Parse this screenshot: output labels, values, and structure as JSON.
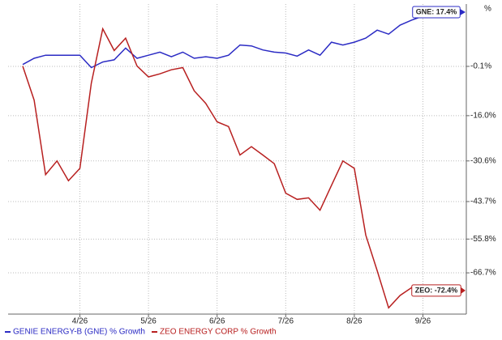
{
  "chart_data": {
    "type": "line",
    "categories": [
      null,
      null,
      null,
      null,
      null,
      "4/26",
      null,
      null,
      null,
      null,
      null,
      "5/26",
      null,
      null,
      null,
      null,
      null,
      "6/26",
      null,
      null,
      null,
      null,
      null,
      "7/26",
      null,
      null,
      null,
      null,
      null,
      "8/26",
      null,
      null,
      null,
      null,
      null,
      "9/26",
      null
    ],
    "series": [
      {
        "name": "GENIE ENERGY-B (GNE) % Growth",
        "color": "#2b2bc4",
        "end_label": "GNE: 17.4%",
        "values": [
          0.5,
          2.5,
          3.5,
          3.5,
          3.5,
          3.5,
          -0.5,
          1.3,
          2,
          5.8,
          2.5,
          3.5,
          4.5,
          3,
          4.5,
          2.5,
          3,
          2.5,
          3.5,
          6.8,
          6.5,
          5.2,
          4.5,
          4.2,
          3.2,
          5.2,
          3.5,
          7.7,
          6.8,
          7.7,
          9,
          11.6,
          10.3,
          13.2,
          14.8,
          16.1,
          17.4
        ]
      },
      {
        "name": "ZEO ENERGY CORP % Growth",
        "color": "#b82020",
        "end_label": "ZEO: -72.4%",
        "values": [
          0,
          -11,
          -35,
          -30.6,
          -37,
          -33,
          -5.5,
          12,
          5,
          9,
          0,
          -3.5,
          -2.5,
          -1.2,
          -0.5,
          -8,
          -12,
          -18,
          -19.5,
          -28.7,
          -26,
          -28.7,
          -31.5,
          -41,
          -43,
          -42.5,
          -46.5,
          -38.5,
          -30.6,
          -33,
          -54.5,
          -66,
          -78,
          -74,
          -71.5,
          -74,
          -72.4
        ]
      }
    ],
    "ylim": [
      -80,
      20
    ],
    "yticks": [
      {
        "value": -0.1,
        "label": "-0.1%"
      },
      {
        "value": -16.0,
        "label": "-16.0%"
      },
      {
        "value": -30.6,
        "label": "-30.6%"
      },
      {
        "value": -43.7,
        "label": "-43.7%"
      },
      {
        "value": -55.8,
        "label": "-55.8%"
      },
      {
        "value": -66.7,
        "label": "-66.7%"
      }
    ],
    "axis_unit": "%",
    "grid": true
  }
}
